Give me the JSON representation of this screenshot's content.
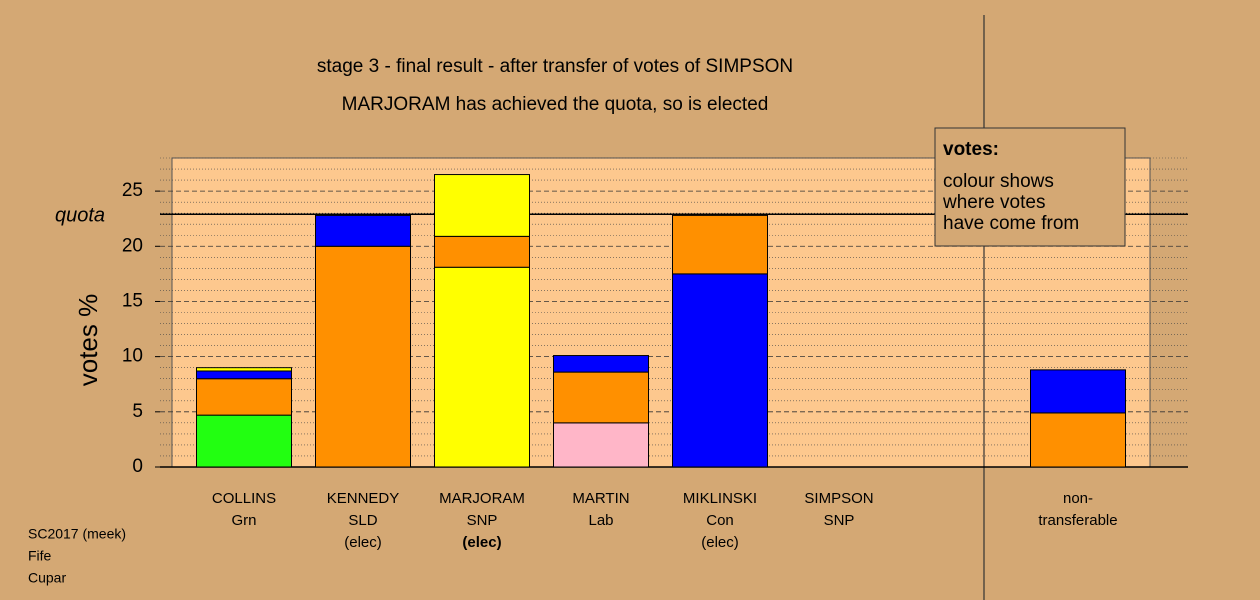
{
  "chart_data": {
    "type": "stacked_bar",
    "title": "stage 3 - final result - after transfer of votes of SIMPSON",
    "subtitle": "MARJORAM has achieved the quota, so is elected",
    "y_label": "votes %",
    "ylim": [
      0,
      28
    ],
    "yticks": [
      0,
      5,
      10,
      15,
      20,
      25
    ],
    "minor_yticks": [
      1,
      2,
      3,
      4,
      6,
      7,
      8,
      9,
      11,
      12,
      13,
      14,
      16,
      17,
      18,
      19,
      21,
      22,
      23,
      24,
      26,
      27,
      28
    ],
    "grid": true,
    "quota": {
      "label": "quota",
      "value": 22.9
    },
    "bold_label_bar": 2,
    "bars": [
      {
        "labels": [
          "COLLINS",
          "Grn"
        ],
        "segments": [
          {
            "color": "#22ff11",
            "value": 4.7
          },
          {
            "color": "#ff9000",
            "value": 3.3
          },
          {
            "color": "#0000ff",
            "value": 0.7
          },
          {
            "color": "#ffff00",
            "value": 0.3
          }
        ]
      },
      {
        "labels": [
          "KENNEDY",
          "SLD",
          "(elec)"
        ],
        "segments": [
          {
            "color": "#ff9000",
            "value": 20.0
          },
          {
            "color": "#0000ff",
            "value": 2.8
          }
        ]
      },
      {
        "labels": [
          "MARJORAM",
          "SNP",
          "(elec)"
        ],
        "segments": [
          {
            "color": "#ffff00",
            "value": 18.1
          },
          {
            "color": "#ff9000",
            "value": 2.8
          },
          {
            "color": "#ffff00",
            "value": 5.6
          }
        ]
      },
      {
        "labels": [
          "MARTIN",
          "Lab"
        ],
        "segments": [
          {
            "color": "#ffb6c8",
            "value": 4.0
          },
          {
            "color": "#ff9000",
            "value": 4.6
          },
          {
            "color": "#0000ff",
            "value": 1.5
          }
        ]
      },
      {
        "labels": [
          "MIKLINSKI",
          "Con",
          "(elec)"
        ],
        "segments": [
          {
            "color": "#0000ff",
            "value": 17.5
          },
          {
            "color": "#ff9000",
            "value": 5.3
          }
        ]
      },
      {
        "labels": [
          "SIMPSON",
          "SNP"
        ],
        "segments": []
      },
      {
        "labels": [
          "non-",
          "transferable"
        ],
        "segments": [
          {
            "color": "#ff9000",
            "value": 4.9
          },
          {
            "color": "#0000ff",
            "value": 3.9
          }
        ]
      }
    ],
    "legend": {
      "title": "votes:",
      "lines": [
        "colour shows",
        "where votes",
        "have come from"
      ]
    },
    "footer": [
      "SC2017 (meek)",
      "Fife",
      "Cupar"
    ]
  }
}
